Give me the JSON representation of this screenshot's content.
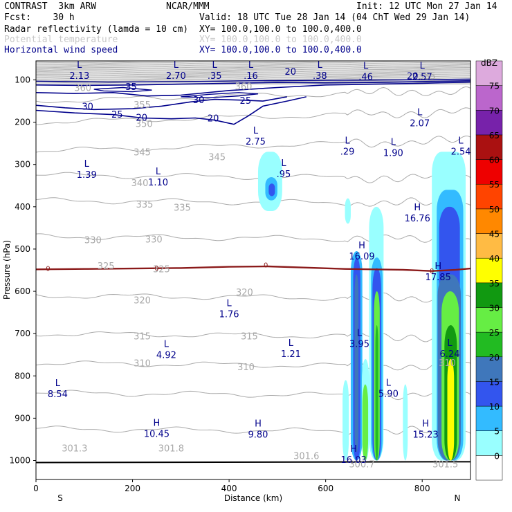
{
  "header": {
    "model": "CONTRAST  3km ARW",
    "org": "NCAR/MMM",
    "init": "Init: 12 UTC Mon 27 Jan 14",
    "fcst": "Fcst:    30 h",
    "valid": "Valid: 18 UTC Tue 28 Jan 14 (04 ChT Wed 29 Jan 14)",
    "field1": "Radar reflectivity (lamda = 10 cm)",
    "field1_xy": "XY= 100.0,100.0 to 100.0,400.0",
    "field2": "Potential temperature",
    "field2_xy": "XY= 100.0,100.0 to 100.0,400.0",
    "field3": "Horizontal wind speed",
    "field3_xy": "XY= 100.0,100.0 to 100.0,400.0",
    "colors": {
      "field1": "#000000",
      "field2": "#c8c8c8",
      "field3": "#00008b"
    }
  },
  "chart_data": {
    "type": "cross-section",
    "xlabel": "Distance (km)",
    "ylabel": "Pressure (hPa)",
    "xlim": [
      0,
      900
    ],
    "ylim": [
      1045,
      55
    ],
    "xticks": [
      0,
      200,
      400,
      600,
      800
    ],
    "yticks": [
      100,
      200,
      300,
      400,
      500,
      600,
      700,
      800,
      900,
      1000
    ],
    "x_end_labels": {
      "left": "S",
      "right": "N"
    },
    "colorbar": {
      "title": "dBZ",
      "levels": [
        0,
        5,
        10,
        15,
        20,
        25,
        30,
        35,
        40,
        45,
        50,
        55,
        60,
        65,
        70,
        75
      ],
      "colors": [
        "#ffffff",
        "#99ffff",
        "#33bbff",
        "#3355ee",
        "#3f77bb",
        "#22bb22",
        "#66ee44",
        "#119911",
        "#ffff00",
        "#ffbb44",
        "#ff8800",
        "#ff4400",
        "#ee0000",
        "#aa1111",
        "#7722aa",
        "#bb66cc",
        "#ddaadd"
      ]
    },
    "theta_labels": [
      {
        "text": "385",
        "x": 810,
        "p": 92
      },
      {
        "text": "360",
        "x": 97,
        "p": 120
      },
      {
        "text": "360",
        "x": 430,
        "p": 116
      },
      {
        "text": "355",
        "x": 220,
        "p": 160
      },
      {
        "text": "350",
        "x": 224,
        "p": 205
      },
      {
        "text": "345",
        "x": 220,
        "p": 272
      },
      {
        "text": "345",
        "x": 375,
        "p": 283
      },
      {
        "text": "340",
        "x": 215,
        "p": 345
      },
      {
        "text": "335",
        "x": 225,
        "p": 395
      },
      {
        "text": "335",
        "x": 303,
        "p": 403
      },
      {
        "text": "330",
        "x": 118,
        "p": 480
      },
      {
        "text": "330",
        "x": 244,
        "p": 478
      },
      {
        "text": "325",
        "x": 145,
        "p": 541
      },
      {
        "text": "325",
        "x": 260,
        "p": 548
      },
      {
        "text": "320",
        "x": 220,
        "p": 622
      },
      {
        "text": "320",
        "x": 432,
        "p": 603
      },
      {
        "text": "315",
        "x": 220,
        "p": 707
      },
      {
        "text": "315",
        "x": 442,
        "p": 707
      },
      {
        "text": "310",
        "x": 220,
        "p": 771
      },
      {
        "text": "310",
        "x": 435,
        "p": 780
      },
      {
        "text": "310",
        "x": 852,
        "p": 770
      },
      {
        "text": "301.3",
        "x": 80,
        "p": 972
      },
      {
        "text": "301.8",
        "x": 280,
        "p": 972
      },
      {
        "text": "301.6",
        "x": 560,
        "p": 990
      },
      {
        "text": "300.7",
        "x": 675,
        "p": 1010
      },
      {
        "text": "301.5",
        "x": 848,
        "p": 1010
      }
    ],
    "wind_labels": [
      {
        "text": "35",
        "x": 197,
        "p": 117
      },
      {
        "text": "30",
        "x": 107,
        "p": 164
      },
      {
        "text": "30",
        "x": 337,
        "p": 148
      },
      {
        "text": "25",
        "x": 168,
        "p": 183
      },
      {
        "text": "25",
        "x": 434,
        "p": 150
      },
      {
        "text": "20",
        "x": 219,
        "p": 190
      },
      {
        "text": "20",
        "x": 367,
        "p": 192
      },
      {
        "text": "20",
        "x": 527,
        "p": 81
      },
      {
        "text": "20",
        "x": 780,
        "p": 92
      },
      {
        "text": "0",
        "x": 25,
        "p": 545
      },
      {
        "text": "0",
        "x": 250,
        "p": 544
      },
      {
        "text": "0",
        "x": 476,
        "p": 537
      },
      {
        "text": "0",
        "x": 820,
        "p": 551
      }
    ],
    "extrema": [
      {
        "type": "L",
        "value": "2.13",
        "x": 90,
        "p": 78
      },
      {
        "type": "L",
        "value": "2.70",
        "x": 290,
        "p": 78
      },
      {
        "type": "L",
        "value": ".35",
        "x": 370,
        "p": 78
      },
      {
        "type": "L",
        "value": ".16",
        "x": 445,
        "p": 78
      },
      {
        "type": "L",
        "value": ".38",
        "x": 588,
        "p": 78
      },
      {
        "type": "L",
        "value": ".46",
        "x": 683,
        "p": 80
      },
      {
        "type": "L",
        "value": "2.57",
        "x": 800,
        "p": 80
      },
      {
        "type": "L",
        "value": "2.07",
        "x": 795,
        "p": 190
      },
      {
        "type": "L",
        "value": "2.75",
        "x": 455,
        "p": 233
      },
      {
        "type": "L",
        "value": ".29",
        "x": 645,
        "p": 257
      },
      {
        "type": "L",
        "value": "1.90",
        "x": 740,
        "p": 260
      },
      {
        "type": "L",
        "value": "2.54",
        "x": 880,
        "p": 257
      },
      {
        "type": "L",
        "value": "1.39",
        "x": 105,
        "p": 312
      },
      {
        "type": "L",
        "value": "1.10",
        "x": 253,
        "p": 330
      },
      {
        "type": "L",
        "value": ".95",
        "x": 513,
        "p": 310
      },
      {
        "type": "H",
        "value": "16.76",
        "x": 790,
        "p": 415
      },
      {
        "type": "H",
        "value": "16.09",
        "x": 675,
        "p": 505
      },
      {
        "type": "H",
        "value": "17.85",
        "x": 833,
        "p": 554
      },
      {
        "type": "L",
        "value": "1.76",
        "x": 400,
        "p": 642
      },
      {
        "type": "L",
        "value": "3.95",
        "x": 670,
        "p": 712
      },
      {
        "type": "L",
        "value": "4.92",
        "x": 270,
        "p": 738
      },
      {
        "type": "L",
        "value": "1.21",
        "x": 528,
        "p": 736
      },
      {
        "type": "L",
        "value": "6.24",
        "x": 857,
        "p": 736
      },
      {
        "type": "L",
        "value": "5.90",
        "x": 730,
        "p": 830
      },
      {
        "type": "L",
        "value": "8.54",
        "x": 45,
        "p": 831
      },
      {
        "type": "H",
        "value": "10.45",
        "x": 250,
        "p": 925
      },
      {
        "type": "H",
        "value": "9.80",
        "x": 460,
        "p": 926
      },
      {
        "type": "H",
        "value": "15.23",
        "x": 807,
        "p": 926
      },
      {
        "type": "H",
        "value": "16.03",
        "x": 658,
        "p": 986
      }
    ]
  }
}
